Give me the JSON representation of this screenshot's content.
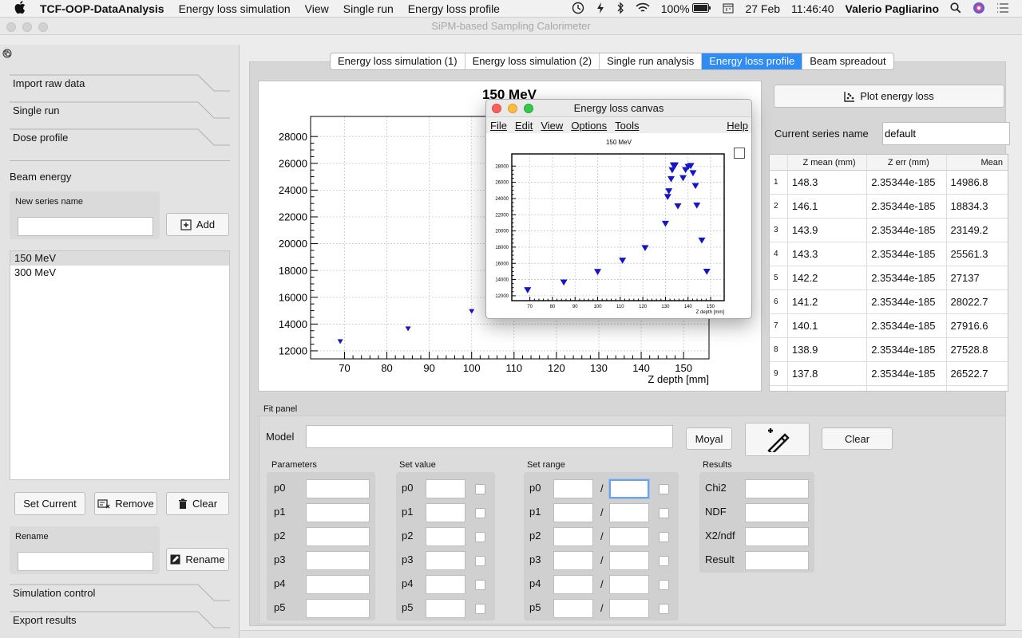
{
  "menubar": {
    "app_name": "TCF-OOP-DataAnalysis",
    "items": [
      "Energy loss simulation",
      "View",
      "Single run",
      "Energy loss profile"
    ],
    "battery": "100%",
    "date": "27 Feb",
    "time": "11:46:40",
    "user": "Valerio Pagliarino"
  },
  "window": {
    "title": "SiPM-based Sampling Calorimeter"
  },
  "sidebar": {
    "sections_top": [
      "Import raw data",
      "Single run",
      "Dose profile"
    ],
    "beam_energy_label": "Beam energy",
    "new_series_label": "New series name",
    "new_series_value": "",
    "add_label": "Add",
    "series": [
      "150 MeV",
      "300 MeV"
    ],
    "set_current_label": "Set Current",
    "remove_label": "Remove",
    "clear_label": "Clear",
    "rename_heading": "Rename",
    "rename_value": "",
    "rename_button": "Rename",
    "sections_bottom": [
      "Simulation control",
      "Export results"
    ]
  },
  "tabs": [
    {
      "label": "Energy loss simulation (1)",
      "active": false
    },
    {
      "label": "Energy loss simulation (2)",
      "active": false
    },
    {
      "label": "Single run analysis",
      "active": false
    },
    {
      "label": "Energy loss profile",
      "active": true
    },
    {
      "label": "Beam spreadout",
      "active": false
    }
  ],
  "chart_data": {
    "type": "scatter",
    "title": "150 MeV",
    "xlabel": "Z depth [mm]",
    "ylabel": "",
    "xlim": [
      62,
      156
    ],
    "ylim": [
      11400,
      29500
    ],
    "xticks": [
      70,
      80,
      90,
      100,
      110,
      120,
      130,
      140,
      150
    ],
    "yticks": [
      12000,
      14000,
      16000,
      18000,
      20000,
      22000,
      24000,
      26000,
      28000
    ],
    "grid": true,
    "marker_color": "#1515c8",
    "points": [
      [
        69,
        12700
      ],
      [
        85,
        13650
      ],
      [
        100,
        14950
      ],
      [
        111,
        16350
      ],
      [
        121,
        17900
      ],
      [
        130,
        20900
      ],
      [
        135.5,
        23050
      ],
      [
        137.8,
        26522.7
      ],
      [
        138.9,
        27528.8
      ],
      [
        140.1,
        27916.6
      ],
      [
        141.2,
        28022.7
      ],
      [
        142.2,
        27137
      ],
      [
        143.3,
        25561.3
      ],
      [
        143.9,
        23149.2
      ],
      [
        146.1,
        18834.3
      ],
      [
        148.3,
        14986.8
      ],
      [
        131,
        24200
      ],
      [
        131.5,
        24900
      ],
      [
        132.5,
        26400
      ],
      [
        133,
        27500
      ],
      [
        133.5,
        28100
      ],
      [
        134.3,
        28100
      ]
    ]
  },
  "canvas": {
    "title": "Energy loss canvas",
    "menu": [
      "File",
      "Edit",
      "View",
      "Options",
      "Tools"
    ],
    "help": "Help",
    "plot_title": "150 MeV",
    "xlabel": "Z depth [mm]"
  },
  "right": {
    "plot_button": "Plot energy loss",
    "series_label": "Current series name",
    "series_value": "default",
    "table": {
      "headers": [
        "Z mean (mm)",
        "Z err (mm)",
        "Mean"
      ],
      "rows": [
        [
          "1",
          "148.3",
          "2.35344e-185",
          "14986.8"
        ],
        [
          "2",
          "146.1",
          "2.35344e-185",
          "18834.3"
        ],
        [
          "3",
          "143.9",
          "2.35344e-185",
          "23149.2"
        ],
        [
          "4",
          "143.3",
          "2.35344e-185",
          "25561.3"
        ],
        [
          "5",
          "142.2",
          "2.35344e-185",
          "27137"
        ],
        [
          "6",
          "141.2",
          "2.35344e-185",
          "28022.7"
        ],
        [
          "7",
          "140.1",
          "2.35344e-185",
          "27916.6"
        ],
        [
          "8",
          "138.9",
          "2.35344e-185",
          "27528.8"
        ],
        [
          "9",
          "137.8",
          "2.35344e-185",
          "26522.7"
        ]
      ]
    }
  },
  "fit": {
    "panel_label": "Fit panel",
    "model_label": "Model",
    "model_value": "",
    "moyal_label": "Moyal",
    "clear_label": "Clear",
    "params_title": "Parameters",
    "setvalue_title": "Set value",
    "setrange_title": "Set range",
    "results_title": "Results",
    "params": [
      "p0",
      "p1",
      "p2",
      "p3",
      "p4",
      "p5"
    ],
    "range_sep": "/",
    "results": [
      "Chi2",
      "NDF",
      "X2/ndf",
      "Result"
    ]
  }
}
